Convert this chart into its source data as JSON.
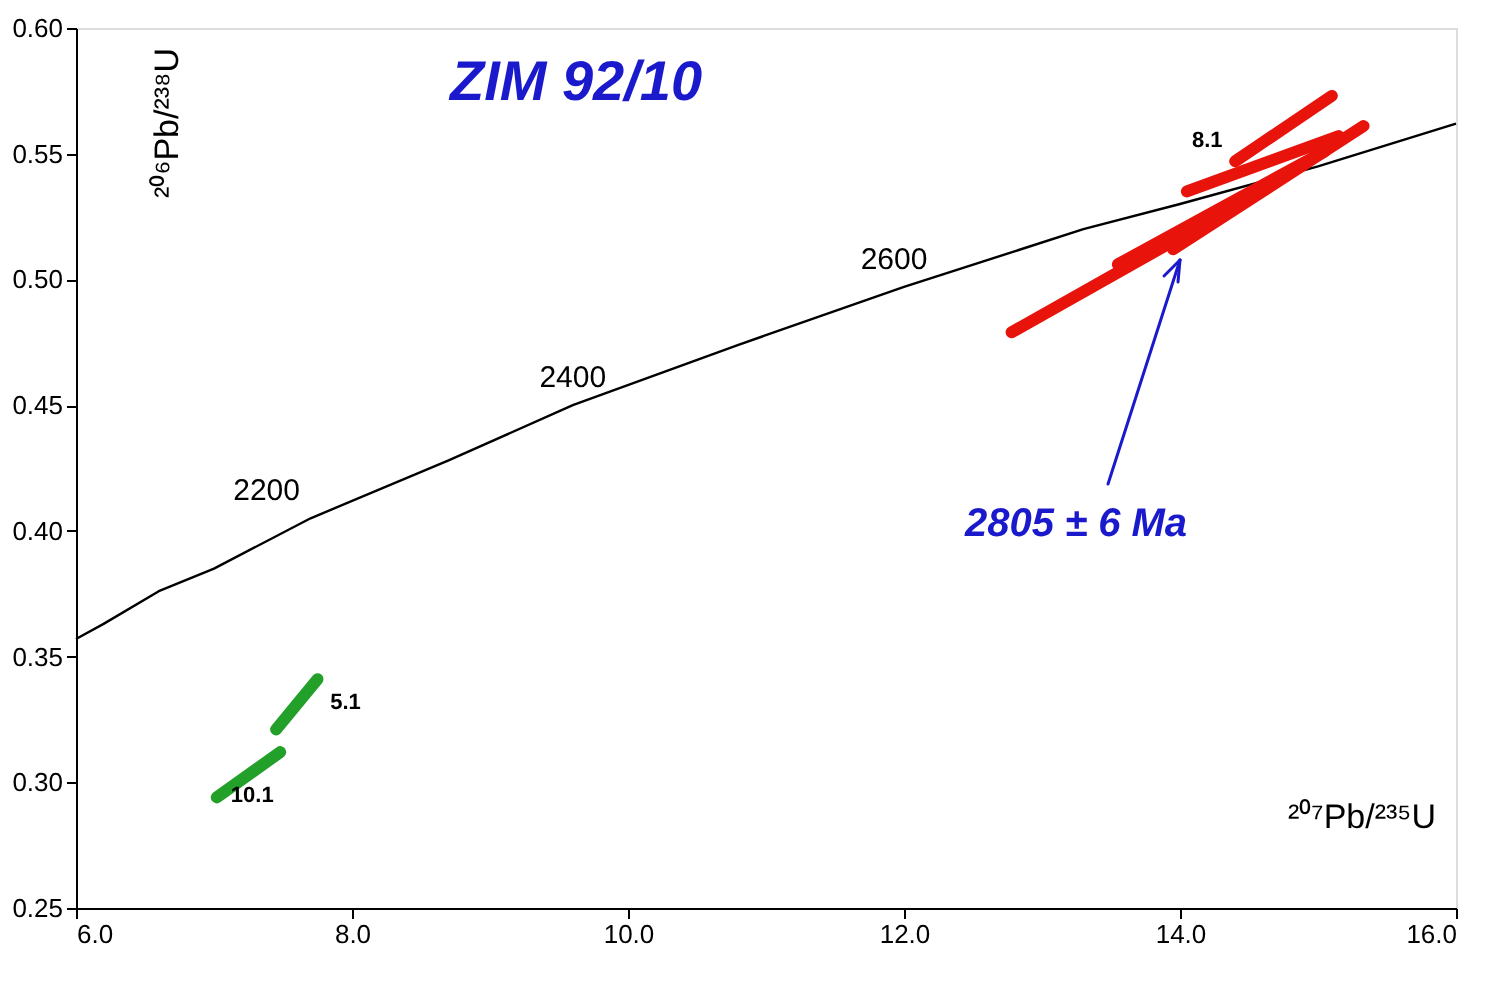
{
  "chart_data": {
    "type": "line",
    "title": "ZIM 92/10",
    "xlabel": "²⁰⁷Pb/²³⁵U",
    "ylabel": "²⁰⁶Pb/²³⁸U",
    "xlim": [
      6.0,
      16.0
    ],
    "ylim": [
      0.25,
      0.6
    ],
    "xticks": [
      {
        "value": 6,
        "label": "6.0"
      },
      {
        "value": 8,
        "label": "8.0"
      },
      {
        "value": 10,
        "label": "10.0"
      },
      {
        "value": 12,
        "label": "12.0"
      },
      {
        "value": 14,
        "label": "14.0"
      },
      {
        "value": 16,
        "label": "16.0"
      }
    ],
    "yticks": [
      0.25,
      {
        "value": 0.3,
        "label": "0.30"
      },
      0.35,
      {
        "value": 0.4,
        "label": "0.40"
      },
      0.45,
      {
        "value": 0.5,
        "label": "0.50"
      },
      0.55,
      {
        "value": 0.6,
        "label": "0.60"
      }
    ],
    "grid": false,
    "marker": "none",
    "line_style": "solid",
    "series": [
      {
        "color": "#000000",
        "x": [
          6.0,
          6.2,
          6.6,
          7.0,
          7.7,
          8.7,
          9.6,
          10.8,
          12.0,
          13.3,
          14.0,
          15.0,
          16.0
        ],
        "values": [
          0.357,
          0.363,
          0.376,
          0.385,
          0.405,
          0.428,
          0.45,
          0.474,
          0.497,
          0.52,
          0.53,
          0.545,
          0.562
        ]
      },
      {
        "color": "#e8140c",
        "x": [
          12.78,
          14.3
        ],
        "values": [
          0.479,
          0.526
        ]
      },
      {
        "color": "#e8140c",
        "x": [
          13.55,
          15.05
        ],
        "values": [
          0.506,
          0.551
        ]
      },
      {
        "color": "#e8140c",
        "x": [
          13.95,
          15.33
        ],
        "values": [
          0.512,
          0.561
        ]
      },
      {
        "color": "#e8140c",
        "x": [
          14.05,
          15.15
        ],
        "values": [
          0.535,
          0.557
        ]
      },
      {
        "color": "#e8140c",
        "x": [
          14.4,
          15.1
        ],
        "values": [
          0.547,
          0.573
        ]
      },
      {
        "color": "#22a02a",
        "x": [
          7.45,
          7.75
        ],
        "values": [
          0.321,
          0.341
        ]
      },
      {
        "color": "#22a02a",
        "x": [
          7.02,
          7.48
        ],
        "values": [
          0.294,
          0.312
        ]
      }
    ],
    "annotations": [
      {
        "text": "2200",
        "x": 7.7,
        "y": 0.405
      },
      {
        "text": "2400",
        "x": 9.6,
        "y": 0.45
      },
      {
        "text": "2600",
        "x": 12.0,
        "y": 0.497
      },
      {
        "text": "8.1",
        "x": 14.4,
        "y": 0.547
      },
      {
        "text": "5.1",
        "x": 7.75,
        "y": 0.341
      },
      {
        "text": "10.1",
        "x": 7.48,
        "y": 0.312
      },
      "2805 ± 6 Ma"
    ]
  }
}
